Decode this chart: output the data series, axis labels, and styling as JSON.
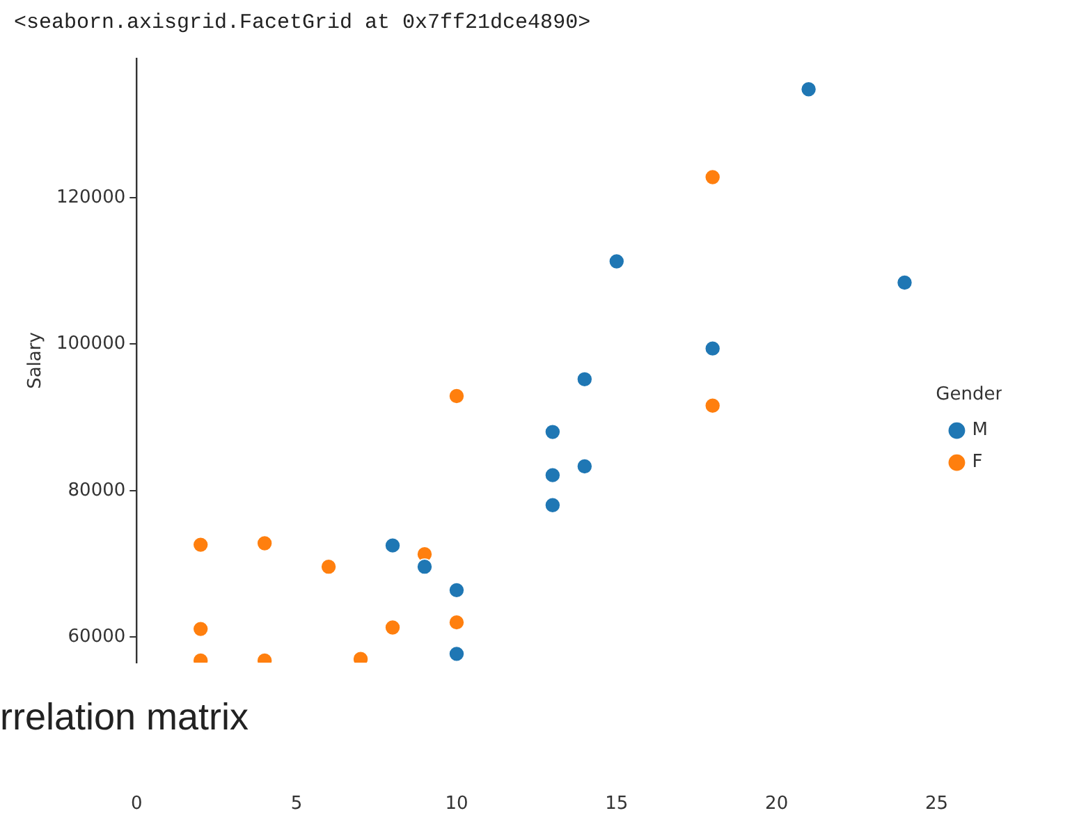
{
  "chart_data": {
    "type": "scatter",
    "ylabel": "Salary",
    "legend_title": "Gender",
    "legend": "right",
    "annotations": [
      "<seaborn.axisgrid.FacetGrid at 0x7ff21dce4890>",
      "rrelation matrix"
    ],
    "xlim": [
      0,
      25
    ],
    "xticks": [
      0,
      5,
      10,
      15,
      20,
      25
    ],
    "ylim": [
      56500,
      139000
    ],
    "yticks": [
      60000,
      80000,
      100000,
      120000
    ],
    "grid": false,
    "marker": "circle",
    "series": [
      {
        "name": "M",
        "color": "#1f77b4",
        "x": [
          21,
          15,
          24,
          18,
          14,
          13,
          13,
          14,
          13,
          8,
          9,
          10,
          10
        ],
        "values": [
          134800,
          111300,
          108400,
          99400,
          95200,
          88000,
          82100,
          83300,
          78000,
          72500,
          69600,
          66400,
          57700
        ]
      },
      {
        "name": "F",
        "color": "#ff7f0e",
        "x": [
          18,
          18,
          10,
          2,
          4,
          6,
          9,
          2,
          8,
          10,
          2,
          4,
          7
        ],
        "values": [
          122800,
          91600,
          92900,
          72600,
          72800,
          69600,
          71300,
          61100,
          61300,
          62000,
          56800,
          56800,
          57000
        ]
      }
    ]
  }
}
